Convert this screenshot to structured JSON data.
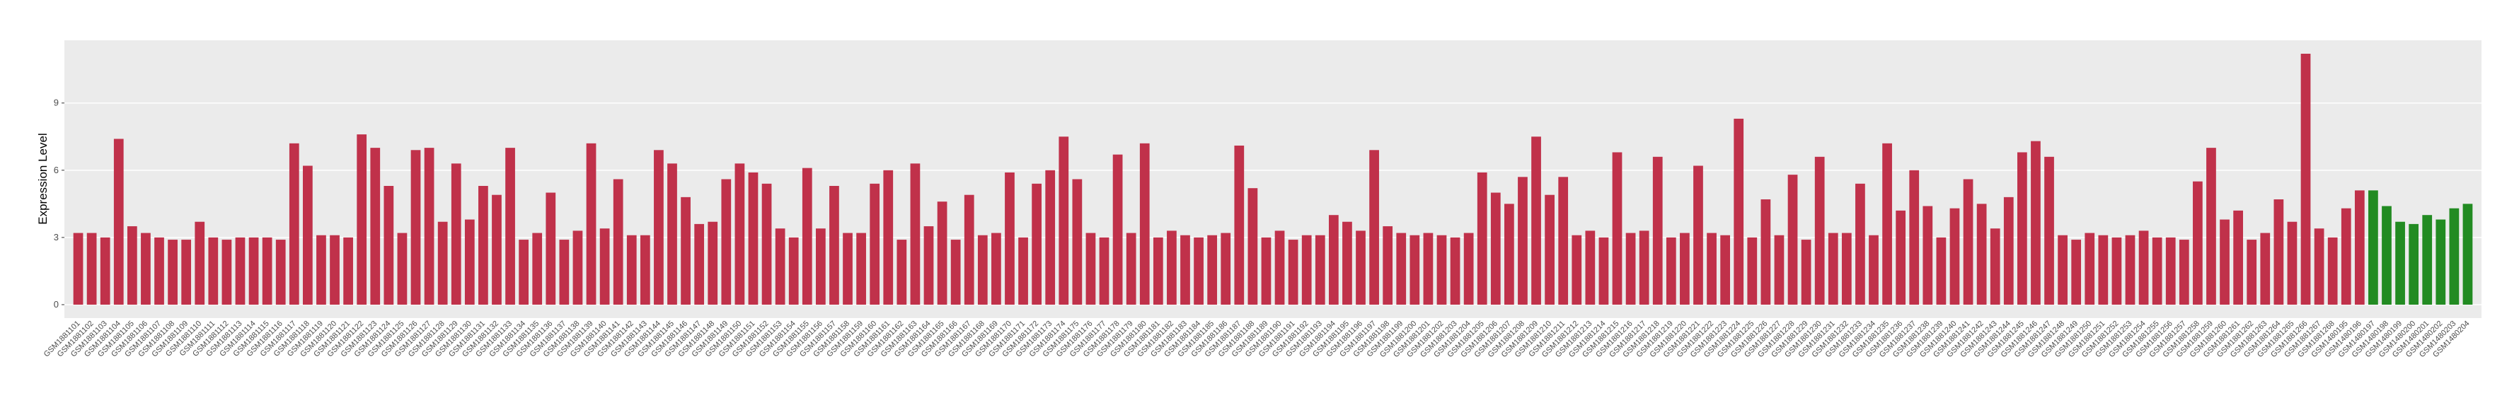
{
  "chart_data": {
    "type": "bar",
    "y_label": "Expression Level",
    "categories": [
      "GSM1881101",
      "GSM1881102",
      "GSM1881103",
      "GSM1881104",
      "GSM1881105",
      "GSM1881106",
      "GSM1881107",
      "GSM1881108",
      "GSM1881109",
      "GSM1881110",
      "GSM1881111",
      "GSM1881112",
      "GSM1881113",
      "GSM1881114",
      "GSM1881115",
      "GSM1881116",
      "GSM1881117",
      "GSM1881118",
      "GSM1881119",
      "GSM1881120",
      "GSM1881121",
      "GSM1881122",
      "GSM1881123",
      "GSM1881124",
      "GSM1881125",
      "GSM1881126",
      "GSM1881127",
      "GSM1881128",
      "GSM1881129",
      "GSM1881130",
      "GSM1881131",
      "GSM1881132",
      "GSM1881133",
      "GSM1881134",
      "GSM1881135",
      "GSM1881136",
      "GSM1881137",
      "GSM1881138",
      "GSM1881139",
      "GSM1881140",
      "GSM1881141",
      "GSM1881142",
      "GSM1881143",
      "GSM1881144",
      "GSM1881145",
      "GSM1881146",
      "GSM1881147",
      "GSM1881148",
      "GSM1881149",
      "GSM1881150",
      "GSM1881151",
      "GSM1881152",
      "GSM1881153",
      "GSM1881154",
      "GSM1881155",
      "GSM1881156",
      "GSM1881157",
      "GSM1881158",
      "GSM1881159",
      "GSM1881160",
      "GSM1881161",
      "GSM1881162",
      "GSM1881163",
      "GSM1881164",
      "GSM1881165",
      "GSM1881166",
      "GSM1881167",
      "GSM1881168",
      "GSM1881169",
      "GSM1881170",
      "GSM1881171",
      "GSM1881172",
      "GSM1881173",
      "GSM1881174",
      "GSM1881175",
      "GSM1881176",
      "GSM1881177",
      "GSM1881178",
      "GSM1881179",
      "GSM1881180",
      "GSM1881181",
      "GSM1881182",
      "GSM1881183",
      "GSM1881184",
      "GSM1881185",
      "GSM1881186",
      "GSM1881187",
      "GSM1881188",
      "GSM1881189",
      "GSM1881190",
      "GSM1881191",
      "GSM1881192",
      "GSM1881193",
      "GSM1881194",
      "GSM1881195",
      "GSM1881196",
      "GSM1881197",
      "GSM1881198",
      "GSM1881199",
      "GSM1881200",
      "GSM1881201",
      "GSM1881202",
      "GSM1881203",
      "GSM1881204",
      "GSM1881205",
      "GSM1881206",
      "GSM1881207",
      "GSM1881208",
      "GSM1881209",
      "GSM1881210",
      "GSM1881211",
      "GSM1881212",
      "GSM1881213",
      "GSM1881214",
      "GSM1881215",
      "GSM1881216",
      "GSM1881217",
      "GSM1881218",
      "GSM1881219",
      "GSM1881220",
      "GSM1881221",
      "GSM1881222",
      "GSM1881223",
      "GSM1881224",
      "GSM1881225",
      "GSM1881226",
      "GSM1881227",
      "GSM1881228",
      "GSM1881229",
      "GSM1881230",
      "GSM1881231",
      "GSM1881232",
      "GSM1881233",
      "GSM1881234",
      "GSM1881235",
      "GSM1881236",
      "GSM1881237",
      "GSM1881238",
      "GSM1881239",
      "GSM1881240",
      "GSM1881241",
      "GSM1881242",
      "GSM1881243",
      "GSM1881244",
      "GSM1881245",
      "GSM1881246",
      "GSM1881247",
      "GSM1881248",
      "GSM1881249",
      "GSM1881250",
      "GSM1881251",
      "GSM1881252",
      "GSM1881253",
      "GSM1881254",
      "GSM1881255",
      "GSM1881256",
      "GSM1881257",
      "GSM1881258",
      "GSM1881259",
      "GSM1881260",
      "GSM1881261",
      "GSM1881262",
      "GSM1881263",
      "GSM1881264",
      "GSM1881265",
      "GSM1881266",
      "GSM1881267",
      "GSM1881268",
      "GSM1480195",
      "GSM1480196",
      "GSM1480197",
      "GSM1480198",
      "GSM1480199",
      "GSM1480200",
      "GSM1480201",
      "GSM1480202",
      "GSM1480203",
      "GSM1480204"
    ],
    "values": [
      3.2,
      3.2,
      3.0,
      7.4,
      3.5,
      3.2,
      3.0,
      2.9,
      2.9,
      3.7,
      3.0,
      2.9,
      3.0,
      3.0,
      3.0,
      2.9,
      7.2,
      6.2,
      3.1,
      3.1,
      3.0,
      7.6,
      7.0,
      5.3,
      3.2,
      6.9,
      7.0,
      3.7,
      6.3,
      3.8,
      5.3,
      4.9,
      7.0,
      2.9,
      3.2,
      5.0,
      2.9,
      3.3,
      7.2,
      3.4,
      5.6,
      3.1,
      3.1,
      6.9,
      6.3,
      4.8,
      3.6,
      3.7,
      5.6,
      6.3,
      5.9,
      5.4,
      3.4,
      3.0,
      6.1,
      3.4,
      5.3,
      3.2,
      3.2,
      5.4,
      6.0,
      2.9,
      6.3,
      3.5,
      4.6,
      2.9,
      4.9,
      3.1,
      3.2,
      5.9,
      3.0,
      5.4,
      6.0,
      7.5,
      5.6,
      3.2,
      3.0,
      6.7,
      3.2,
      7.2,
      3.0,
      3.3,
      3.1,
      3.0,
      3.1,
      3.2,
      7.1,
      5.2,
      3.0,
      3.3,
      2.9,
      3.1,
      3.1,
      4.0,
      3.7,
      3.3,
      6.9,
      3.5,
      3.2,
      3.1,
      3.2,
      3.1,
      3.0,
      3.2,
      5.9,
      5.0,
      4.5,
      5.7,
      7.5,
      4.9,
      5.7,
      3.1,
      3.3,
      3.0,
      6.8,
      3.2,
      3.3,
      6.6,
      3.0,
      3.2,
      6.2,
      3.2,
      3.1,
      8.3,
      3.0,
      4.7,
      3.1,
      5.8,
      2.9,
      6.6,
      3.2,
      3.2,
      5.4,
      3.1,
      7.2,
      4.2,
      6.0,
      4.4,
      3.0,
      4.3,
      5.6,
      4.5,
      3.4,
      4.8,
      6.8,
      7.3,
      6.6,
      3.1,
      2.9,
      3.2,
      3.1,
      3.0,
      3.1,
      3.3,
      3.0,
      3.0,
      2.9,
      5.5,
      7.0,
      3.8,
      4.2,
      2.9,
      3.2,
      4.7,
      3.7,
      11.2,
      3.4,
      3.0,
      4.3,
      5.1,
      5.1,
      4.4,
      3.7,
      3.6,
      4.0,
      3.8,
      4.3,
      4.5
    ],
    "colors": [
      "#c0314a",
      "#c0314a",
      "#c0314a",
      "#c0314a",
      "#c0314a",
      "#c0314a",
      "#c0314a",
      "#c0314a",
      "#c0314a",
      "#c0314a",
      "#c0314a",
      "#c0314a",
      "#c0314a",
      "#c0314a",
      "#c0314a",
      "#c0314a",
      "#c0314a",
      "#c0314a",
      "#c0314a",
      "#c0314a",
      "#c0314a",
      "#c0314a",
      "#c0314a",
      "#c0314a",
      "#c0314a",
      "#c0314a",
      "#c0314a",
      "#c0314a",
      "#c0314a",
      "#c0314a",
      "#c0314a",
      "#c0314a",
      "#c0314a",
      "#c0314a",
      "#c0314a",
      "#c0314a",
      "#c0314a",
      "#c0314a",
      "#c0314a",
      "#c0314a",
      "#c0314a",
      "#c0314a",
      "#c0314a",
      "#c0314a",
      "#c0314a",
      "#c0314a",
      "#c0314a",
      "#c0314a",
      "#c0314a",
      "#c0314a",
      "#c0314a",
      "#c0314a",
      "#c0314a",
      "#c0314a",
      "#c0314a",
      "#c0314a",
      "#c0314a",
      "#c0314a",
      "#c0314a",
      "#c0314a",
      "#c0314a",
      "#c0314a",
      "#c0314a",
      "#c0314a",
      "#c0314a",
      "#c0314a",
      "#c0314a",
      "#c0314a",
      "#c0314a",
      "#c0314a",
      "#c0314a",
      "#c0314a",
      "#c0314a",
      "#c0314a",
      "#c0314a",
      "#c0314a",
      "#c0314a",
      "#c0314a",
      "#c0314a",
      "#c0314a",
      "#c0314a",
      "#c0314a",
      "#c0314a",
      "#c0314a",
      "#c0314a",
      "#c0314a",
      "#c0314a",
      "#c0314a",
      "#c0314a",
      "#c0314a",
      "#c0314a",
      "#c0314a",
      "#c0314a",
      "#c0314a",
      "#c0314a",
      "#c0314a",
      "#c0314a",
      "#c0314a",
      "#c0314a",
      "#c0314a",
      "#c0314a",
      "#c0314a",
      "#c0314a",
      "#c0314a",
      "#c0314a",
      "#c0314a",
      "#c0314a",
      "#c0314a",
      "#c0314a",
      "#c0314a",
      "#c0314a",
      "#c0314a",
      "#c0314a",
      "#c0314a",
      "#c0314a",
      "#c0314a",
      "#c0314a",
      "#c0314a",
      "#c0314a",
      "#c0314a",
      "#c0314a",
      "#c0314a",
      "#c0314a",
      "#c0314a",
      "#c0314a",
      "#c0314a",
      "#c0314a",
      "#c0314a",
      "#c0314a",
      "#c0314a",
      "#c0314a",
      "#c0314a",
      "#c0314a",
      "#c0314a",
      "#c0314a",
      "#c0314a",
      "#c0314a",
      "#c0314a",
      "#c0314a",
      "#c0314a",
      "#c0314a",
      "#c0314a",
      "#c0314a",
      "#c0314a",
      "#c0314a",
      "#c0314a",
      "#c0314a",
      "#c0314a",
      "#c0314a",
      "#c0314a",
      "#c0314a",
      "#c0314a",
      "#c0314a",
      "#c0314a",
      "#c0314a",
      "#c0314a",
      "#c0314a",
      "#c0314a",
      "#c0314a",
      "#c0314a",
      "#c0314a",
      "#c0314a",
      "#c0314a",
      "#c0314a",
      "#c0314a",
      "#c0314a",
      "#c0314a",
      "#c0314a",
      "#c0314a",
      "#c0314a",
      "#228b22",
      "#228b22",
      "#228b22",
      "#228b22",
      "#228b22",
      "#228b22",
      "#228b22",
      "#228b22",
      "#228b22",
      "#228b22"
    ],
    "ylim": [
      -0.6,
      11.8
    ],
    "yticks": [
      0,
      3,
      6,
      9
    ],
    "grid": true
  }
}
